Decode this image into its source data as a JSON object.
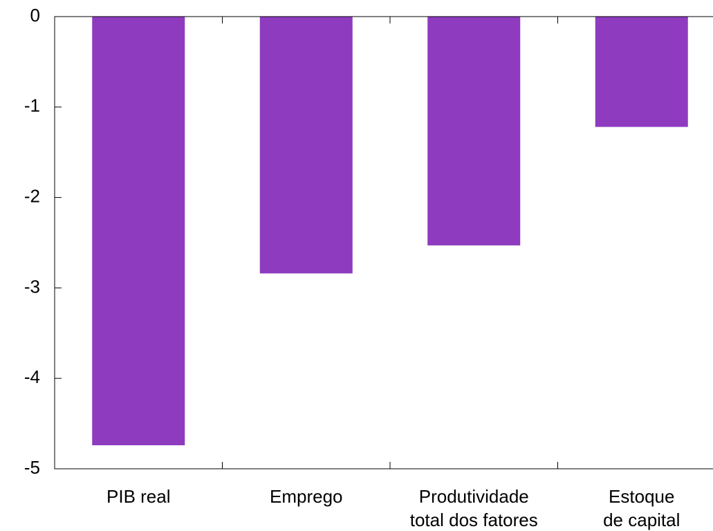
{
  "chart_data": {
    "type": "bar",
    "categories": [
      "PIB real",
      "Emprego",
      "Produtividade\ntotal dos fatores",
      "Estoque\nde capital"
    ],
    "values": [
      -4.74,
      -2.84,
      -2.53,
      -1.22
    ],
    "color": "#8e3bbf",
    "ylim": [
      -5,
      0
    ],
    "yticks": [
      0,
      -1,
      -2,
      -3,
      -4,
      -5
    ]
  }
}
